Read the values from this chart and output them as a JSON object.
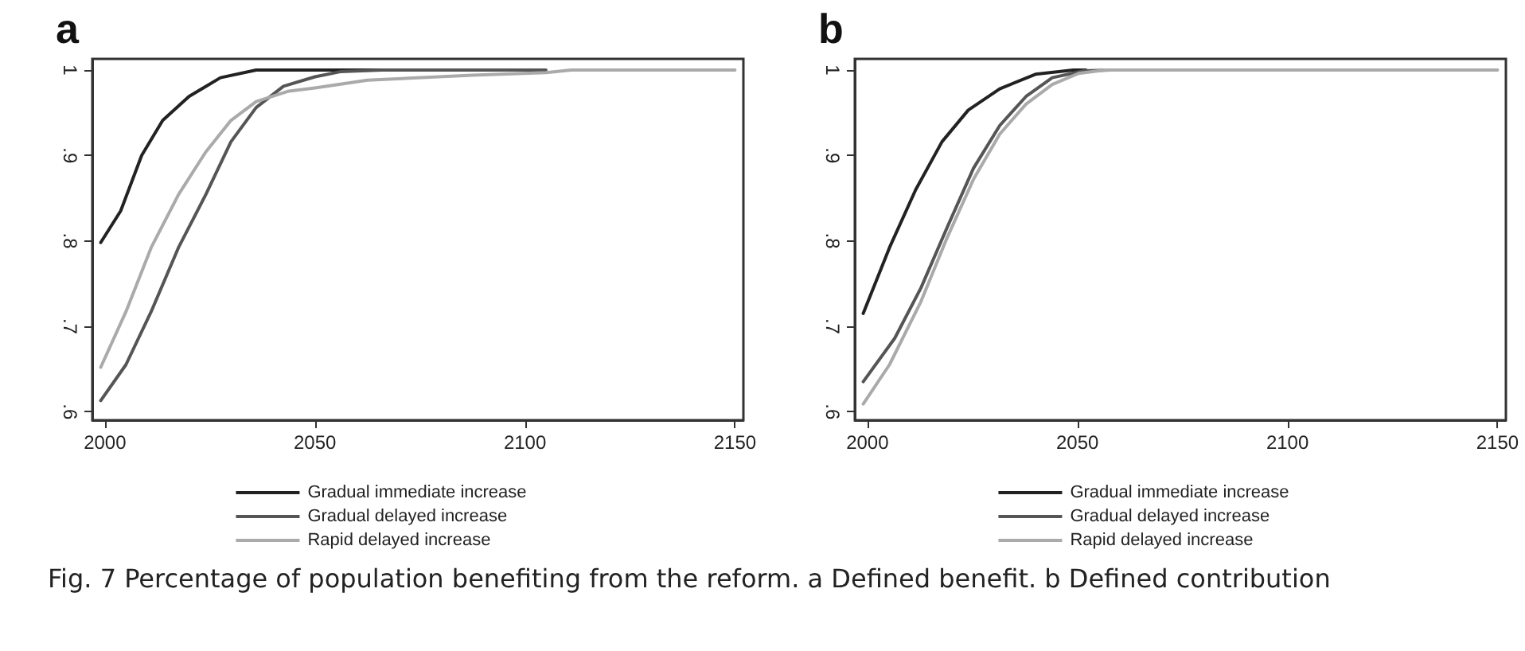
{
  "chart_data": [
    {
      "type": "line",
      "title": "a",
      "xlim": [
        1997,
        2152
      ],
      "ylim": [
        0.59,
        1.013
      ],
      "xticks": [
        2000,
        2050,
        2100,
        2150
      ],
      "yticks": [
        {
          "value": 0.6,
          "label": ".6"
        },
        {
          "value": 0.7,
          "label": ".7"
        },
        {
          "value": 0.8,
          "label": ".8"
        },
        {
          "value": 0.9,
          "label": ".9"
        },
        {
          "value": 1,
          "label": "1"
        }
      ],
      "grid": false,
      "legend": "bottom",
      "marker": "none",
      "line_style": "solid",
      "annotations": [
        "Fig. 7  Percentage of population benefiting from the reform. a Defined benefit. b Defined contribution"
      ],
      "series": [
        {
          "name": "Gradual immediate increase",
          "color": "#222222",
          "x": [
            1999,
            2003.75,
            2008.75,
            2013.75,
            2020,
            2027.5,
            2036,
            2066
          ],
          "values": [
            0.798,
            0.835,
            0.9,
            0.941,
            0.969,
            0.991,
            1,
            1
          ]
        },
        {
          "name": "Gradual delayed increase",
          "color": "#555555",
          "x": [
            1999,
            2005,
            2011,
            2017.5,
            2024,
            2030,
            2036,
            2042.5,
            2050,
            2056,
            2066,
            2105
          ],
          "values": [
            0.613,
            0.655,
            0.717,
            0.792,
            0.854,
            0.916,
            0.956,
            0.981,
            0.992,
            0.998,
            1,
            1
          ]
        },
        {
          "name": "Rapid delayed increase",
          "color": "#aaaaaa",
          "x": [
            1999,
            2005,
            2011,
            2017.5,
            2024,
            2030,
            2036,
            2043.5,
            2050,
            2062.5,
            2087.5,
            2105,
            2111,
            2150
          ],
          "values": [
            0.652,
            0.717,
            0.792,
            0.854,
            0.904,
            0.941,
            0.963,
            0.975,
            0.979,
            0.988,
            0.994,
            0.997,
            1,
            1
          ]
        }
      ]
    },
    {
      "type": "line",
      "title": "b",
      "xlim": [
        1997,
        2152
      ],
      "ylim": [
        0.59,
        1.013
      ],
      "xticks": [
        2000,
        2050,
        2100,
        2150
      ],
      "yticks": [
        {
          "value": 0.6,
          "label": ".6"
        },
        {
          "value": 0.7,
          "label": ".7"
        },
        {
          "value": 0.8,
          "label": ".8"
        },
        {
          "value": 0.9,
          "label": ".9"
        },
        {
          "value": 1,
          "label": "1"
        }
      ],
      "grid": false,
      "legend": "bottom",
      "marker": "none",
      "line_style": "solid",
      "series": [
        {
          "name": "Gradual immediate increase",
          "color": "#222222",
          "x": [
            1999,
            2005.25,
            2011.5,
            2017.75,
            2024,
            2031.5,
            2040,
            2049,
            2052
          ],
          "values": [
            0.715,
            0.792,
            0.86,
            0.916,
            0.953,
            0.978,
            0.995,
            1,
            1
          ]
        },
        {
          "name": "Gradual delayed increase",
          "color": "#555555",
          "x": [
            1999,
            2006.5,
            2012.75,
            2019,
            2025.25,
            2031.5,
            2037.75,
            2044,
            2051.5,
            2058
          ],
          "values": [
            0.635,
            0.686,
            0.745,
            0.816,
            0.885,
            0.935,
            0.969,
            0.991,
            0.999,
            1
          ]
        },
        {
          "name": "Rapid delayed increase",
          "color": "#aaaaaa",
          "x": [
            1999,
            2005.25,
            2012.75,
            2019,
            2025.25,
            2031.5,
            2037.75,
            2044,
            2050.25,
            2056.5,
            2150
          ],
          "values": [
            0.609,
            0.655,
            0.729,
            0.804,
            0.872,
            0.925,
            0.96,
            0.983,
            0.996,
            1,
            1
          ]
        }
      ]
    }
  ]
}
